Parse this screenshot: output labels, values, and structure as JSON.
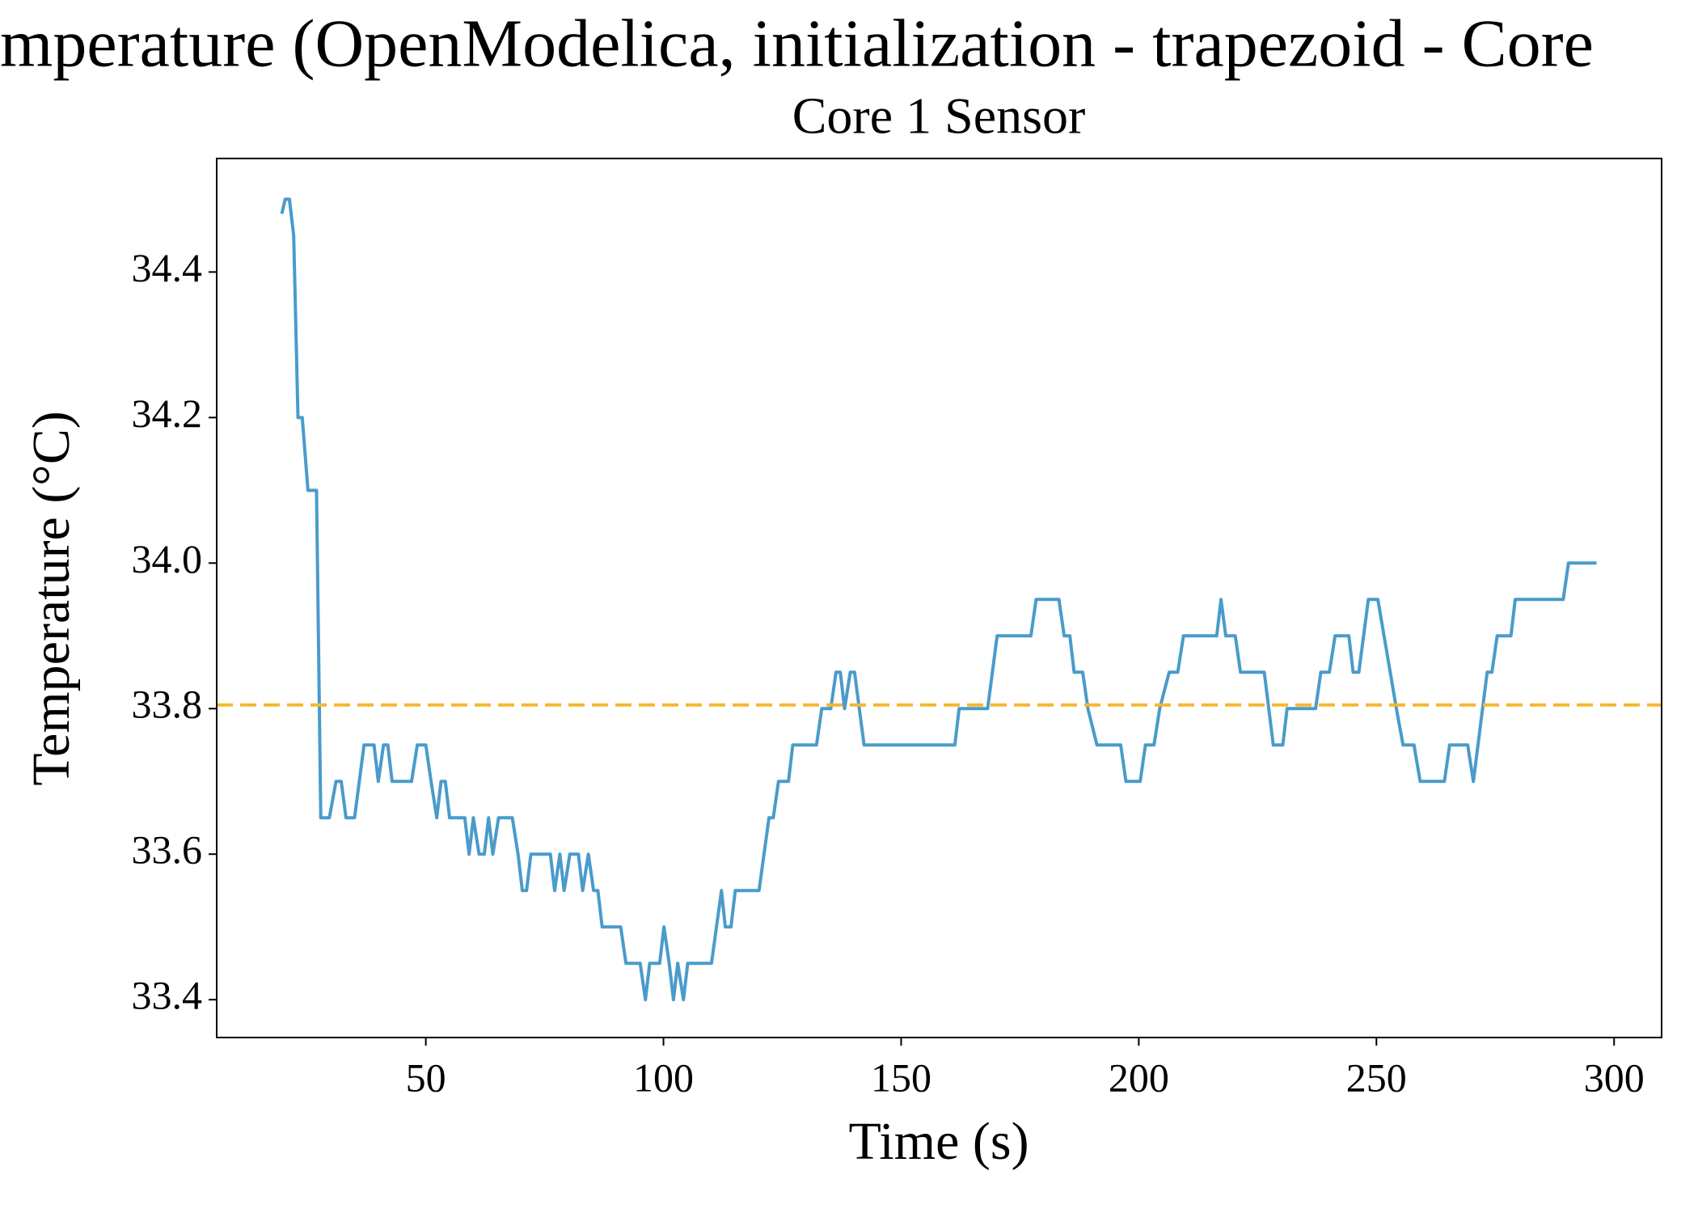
{
  "chart_data": {
    "type": "line",
    "title": "mperature (OpenModelica, initialization - trapezoid - Core",
    "subtitle": "Core 1 Sensor",
    "xlabel": "Time (s)",
    "ylabel": "Temperature (°C)",
    "x": [
      19.7,
      20.4,
      21.3,
      22.2,
      23.1,
      24.0,
      25.2,
      27.0,
      27.9,
      29.7,
      31.1,
      32.2,
      33.2,
      35.0,
      37.0,
      39.1,
      40.0,
      41.1,
      42.0,
      42.9,
      47.0,
      48.2,
      50.0,
      51.1,
      52.3,
      53.2,
      54.1,
      55.0,
      58.2,
      59.1,
      60.0,
      61.2,
      62.3,
      63.2,
      64.1,
      65.3,
      68.2,
      69.4,
      70.3,
      71.2,
      72.1,
      76.2,
      77.1,
      78.2,
      79.1,
      80.3,
      82.1,
      83.0,
      84.2,
      85.3,
      86.2,
      87.1,
      91.0,
      92.1,
      95.1,
      96.2,
      97.1,
      99.2,
      100.1,
      101.2,
      102.1,
      103.0,
      104.2,
      105.1,
      110.1,
      112.2,
      113.0,
      114.2,
      115.1,
      120.1,
      122.2,
      123.1,
      124.2,
      126.3,
      127.2,
      132.2,
      133.3,
      135.2,
      136.3,
      137.2,
      138.1,
      139.3,
      140.2,
      142.2,
      161.3,
      162.2,
      168.2,
      170.2,
      177.3,
      178.4,
      183.2,
      184.3,
      185.5,
      186.4,
      188.2,
      189.3,
      191.2,
      196.2,
      197.3,
      200.3,
      201.4,
      203.2,
      204.4,
      206.4,
      208.2,
      209.4,
      215.3,
      216.4,
      217.3,
      218.3,
      220.3,
      221.4,
      226.4,
      228.3,
      230.3,
      231.2,
      237.2,
      238.3,
      240.1,
      241.3,
      244.2,
      245.1,
      246.3,
      248.3,
      250.3,
      254.2,
      255.6,
      257.9,
      259.2,
      264.3,
      265.4,
      269.2,
      270.4,
      273.3,
      274.3,
      275.4,
      278.3,
      279.2,
      289.3,
      290.4,
      296.3
    ],
    "values": [
      34.48,
      34.5,
      34.5,
      34.45,
      34.2,
      34.2,
      34.1,
      34.1,
      33.65,
      33.65,
      33.7,
      33.7,
      33.65,
      33.65,
      33.75,
      33.75,
      33.7,
      33.75,
      33.75,
      33.7,
      33.7,
      33.75,
      33.75,
      33.7,
      33.65,
      33.7,
      33.7,
      33.65,
      33.65,
      33.6,
      33.65,
      33.6,
      33.6,
      33.65,
      33.6,
      33.65,
      33.65,
      33.6,
      33.55,
      33.55,
      33.6,
      33.6,
      33.55,
      33.6,
      33.55,
      33.6,
      33.6,
      33.55,
      33.6,
      33.55,
      33.55,
      33.5,
      33.5,
      33.45,
      33.45,
      33.4,
      33.45,
      33.45,
      33.5,
      33.45,
      33.4,
      33.45,
      33.4,
      33.45,
      33.45,
      33.55,
      33.5,
      33.5,
      33.55,
      33.55,
      33.65,
      33.65,
      33.7,
      33.7,
      33.75,
      33.75,
      33.8,
      33.8,
      33.85,
      33.85,
      33.8,
      33.85,
      33.85,
      33.75,
      33.75,
      33.8,
      33.8,
      33.9,
      33.9,
      33.95,
      33.95,
      33.9,
      33.9,
      33.85,
      33.85,
      33.8,
      33.75,
      33.75,
      33.7,
      33.7,
      33.75,
      33.75,
      33.8,
      33.85,
      33.85,
      33.9,
      33.9,
      33.9,
      33.95,
      33.9,
      33.9,
      33.85,
      33.85,
      33.75,
      33.75,
      33.8,
      33.8,
      33.85,
      33.85,
      33.9,
      33.9,
      33.85,
      33.85,
      33.95,
      33.95,
      33.8,
      33.75,
      33.75,
      33.7,
      33.7,
      33.75,
      33.75,
      33.7,
      33.85,
      33.85,
      33.9,
      33.9,
      33.95,
      33.95,
      34.0,
      34.0
    ],
    "color": "#4a9bcb",
    "reference_line": {
      "value": 33.805,
      "color": "#f5b731",
      "style": "dashed"
    },
    "xlim": [
      6,
      310
    ],
    "ylim": [
      33.348,
      34.556
    ],
    "xticks": [
      50,
      100,
      150,
      200,
      250,
      300
    ],
    "yticks": [
      33.4,
      33.6,
      33.8,
      {
        "value": 34,
        "label": "34.0"
      },
      34.2,
      34.4
    ],
    "grid": false
  }
}
